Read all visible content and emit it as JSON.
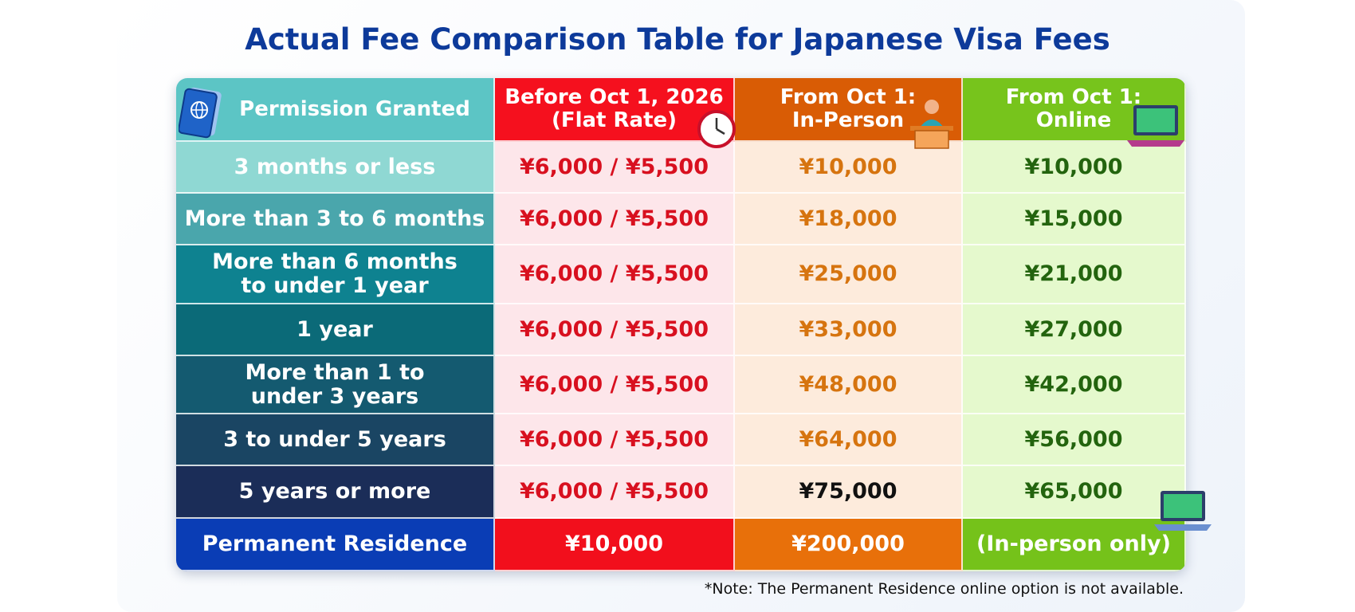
{
  "title": "Actual Fee Comparison Table for Japanese Visa Fees",
  "table": {
    "header": [
      "Permission Granted",
      "Before Oct 1, 2026\n(Flat Rate)",
      "From Oct 1:\nIn-Person",
      "From Oct 1:\nOnline"
    ],
    "rows": [
      [
        "3 months or less",
        "¥6,000 / ¥5,500",
        "¥10,000",
        "¥10,000"
      ],
      [
        "More than 3 to 6 months",
        "¥6,000 / ¥5,500",
        "¥18,000",
        "¥15,000"
      ],
      [
        "More than 6 months\nto under 1 year",
        "¥6,000 / ¥5,500",
        "¥25,000",
        "¥21,000"
      ],
      [
        "1 year",
        "¥6,000 / ¥5,500",
        "¥33,000",
        "¥27,000"
      ],
      [
        "More than 1 to\nunder 3 years",
        "¥6,000 / ¥5,500",
        "¥48,000",
        "¥42,000"
      ],
      [
        "3 to under 5 years",
        "¥6,000 / ¥5,500",
        "¥64,000",
        "¥56,000"
      ],
      [
        "5 years or more",
        "¥6,000 / ¥5,500",
        "¥75,000",
        "¥65,000"
      ],
      [
        "Permanent Residence",
        "¥10,000",
        "¥200,000",
        "(In-person only)"
      ]
    ]
  },
  "note": "*Note: The Permanent Residence online option is not available."
}
